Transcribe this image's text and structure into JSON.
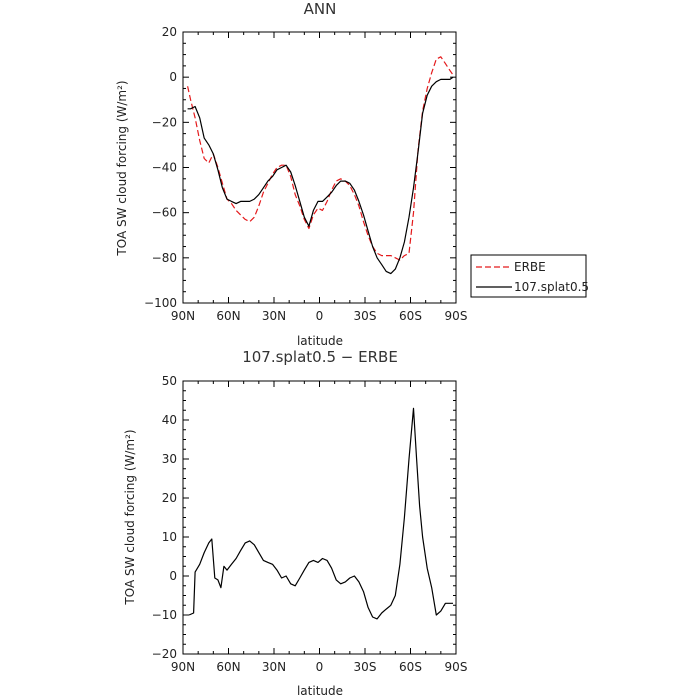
{
  "chart_data": [
    {
      "type": "line",
      "title": "ANN",
      "xlabel": "latitude",
      "ylabel": "TOA SW cloud forcing (W/m²)",
      "xlim": [
        90,
        -90
      ],
      "ylim": [
        -100,
        20
      ],
      "xticks": [
        90,
        60,
        30,
        0,
        -30,
        -60,
        -90
      ],
      "xtick_labels": [
        "90N",
        "60N",
        "30N",
        "0",
        "30S",
        "60S",
        "90S"
      ],
      "yticks": [
        20,
        0,
        -20,
        -40,
        -60,
        -80,
        -100
      ],
      "ytick_labels": [
        "20",
        "0",
        "−20",
        "−40",
        "−60",
        "−80",
        "−100"
      ],
      "legend": "right",
      "series": [
        {
          "name": "ERBE",
          "color": "#e41a1c",
          "dash": "dashed",
          "lat": [
            87,
            85,
            82,
            79,
            76,
            73,
            70,
            67,
            64,
            61,
            58,
            55,
            52,
            49,
            46,
            43,
            40,
            37,
            34,
            31,
            28,
            25,
            22,
            19,
            16,
            13,
            10,
            7,
            4,
            1,
            -2,
            -5,
            -8,
            -11,
            -14,
            -17,
            -20,
            -23,
            -26,
            -29,
            -32,
            -35,
            -38,
            -41,
            -44,
            -47,
            -50,
            -53,
            -56,
            -59,
            -62,
            -65,
            -68,
            -71,
            -74,
            -77,
            -80,
            -83,
            -86,
            -88
          ],
          "values": [
            -4,
            -10,
            -18,
            -28,
            -36,
            -38,
            -34,
            -40,
            -47,
            -54,
            -56,
            -59,
            -61,
            -63,
            -64,
            -62,
            -57,
            -51,
            -47,
            -43,
            -40,
            -39,
            -39,
            -44,
            -52,
            -57,
            -63,
            -67,
            -61,
            -58,
            -59,
            -55,
            -50,
            -46,
            -45,
            -46,
            -48,
            -52,
            -57,
            -64,
            -70,
            -75,
            -78,
            -79,
            -79,
            -79,
            -80,
            -81,
            -79,
            -78,
            -60,
            -32,
            -15,
            -5,
            2,
            8,
            9,
            6,
            3,
            1
          ]
        },
        {
          "name": "107.splat0.5",
          "color": "#000000",
          "dash": "solid",
          "lat": [
            87,
            85,
            82,
            79,
            76,
            73,
            70,
            67,
            64,
            61,
            58,
            55,
            52,
            49,
            46,
            43,
            40,
            37,
            34,
            31,
            28,
            25,
            22,
            19,
            16,
            13,
            10,
            7,
            4,
            1,
            -2,
            -5,
            -8,
            -11,
            -14,
            -17,
            -20,
            -23,
            -26,
            -29,
            -32,
            -35,
            -38,
            -41,
            -44,
            -47,
            -50,
            -53,
            -56,
            -59,
            -62,
            -65,
            -68,
            -71,
            -74,
            -77,
            -80,
            -83,
            -86,
            -88
          ],
          "values": [
            -14,
            -14,
            -13,
            -18,
            -27,
            -30,
            -34,
            -41,
            -49,
            -54,
            -55,
            -56,
            -55,
            -55,
            -55,
            -54,
            -52,
            -49,
            -46,
            -44,
            -41,
            -40,
            -39,
            -42,
            -48,
            -55,
            -62,
            -66,
            -59,
            -55,
            -55,
            -53,
            -51,
            -48,
            -46,
            -46,
            -47,
            -50,
            -55,
            -61,
            -68,
            -75,
            -80,
            -83,
            -86,
            -87,
            -85,
            -80,
            -73,
            -62,
            -49,
            -33,
            -16,
            -8,
            -4,
            -2,
            -1,
            -1,
            -1,
            0
          ]
        }
      ]
    },
    {
      "type": "line",
      "title": "107.splat0.5 − ERBE",
      "xlabel": "latitude",
      "ylabel": "TOA SW cloud forcing (W/m²)",
      "xlim": [
        90,
        -90
      ],
      "ylim": [
        -20,
        50
      ],
      "xticks": [
        90,
        60,
        30,
        0,
        -30,
        -60,
        -90
      ],
      "xtick_labels": [
        "90N",
        "60N",
        "30N",
        "0",
        "30S",
        "60S",
        "90S"
      ],
      "yticks": [
        50,
        40,
        30,
        20,
        10,
        0,
        -10,
        -20
      ],
      "ytick_labels": [
        "50",
        "40",
        "30",
        "20",
        "10",
        "0",
        "−10",
        "−20"
      ],
      "legend": "none",
      "series": [
        {
          "color": "#000000",
          "dash": "solid",
          "lat": [
            86,
            83,
            82,
            79,
            76,
            73,
            71,
            69,
            67,
            65,
            63,
            61,
            58,
            55,
            52,
            49,
            46,
            43,
            40,
            37,
            34,
            31,
            28,
            25,
            22,
            19,
            16,
            13,
            10,
            7,
            4,
            1,
            -2,
            -5,
            -8,
            -11,
            -14,
            -17,
            -20,
            -23,
            -26,
            -29,
            -32,
            -35,
            -38,
            -41,
            -44,
            -47,
            -50,
            -53,
            -56,
            -59,
            -62,
            -64,
            -66,
            -68,
            -71,
            -74,
            -77,
            -80,
            -83,
            -86,
            -88
          ],
          "values": [
            -10,
            -9.5,
            1,
            3,
            6,
            8.5,
            9.5,
            -0.5,
            -1,
            -3,
            2.5,
            1.5,
            3,
            4.5,
            6.5,
            8.5,
            9,
            8,
            6,
            4,
            3.5,
            3,
            1.5,
            -0.5,
            0,
            -2,
            -2.5,
            -0.5,
            1.5,
            3.5,
            4,
            3.5,
            4.5,
            4,
            2,
            -1,
            -2,
            -1.5,
            -0.5,
            0,
            -1.5,
            -4,
            -8,
            -10.5,
            -11,
            -9.5,
            -8.5,
            -7.5,
            -5,
            3,
            15,
            30,
            43,
            30,
            18,
            10,
            2,
            -3,
            -10,
            -9,
            -7,
            -7,
            -7
          ]
        }
      ]
    }
  ]
}
